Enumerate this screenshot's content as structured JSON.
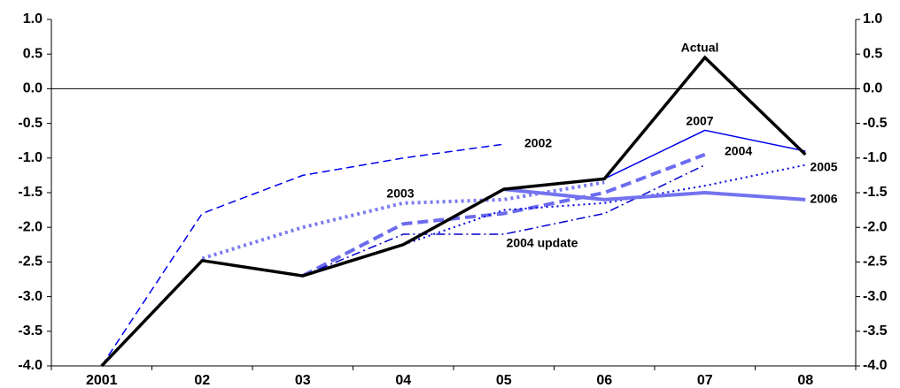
{
  "chart_data": {
    "type": "line",
    "categories": [
      "2001",
      "02",
      "03",
      "04",
      "05",
      "06",
      "07",
      "08"
    ],
    "ylim": [
      -4,
      1
    ],
    "yticks": [
      {
        "value": -4,
        "label": "-4.0"
      },
      {
        "value": -3.5,
        "label": "-3.5"
      },
      {
        "value": -3,
        "label": "-3.0"
      },
      {
        "value": -2.5,
        "label": "-2.5"
      },
      {
        "value": -2,
        "label": "-2.0"
      },
      {
        "value": -1.5,
        "label": "-1.5"
      },
      {
        "value": -1,
        "label": "-1.0"
      },
      {
        "value": -0.5,
        "label": "-0.5"
      },
      {
        "value": 0,
        "label": "0.0"
      },
      {
        "value": 0.5,
        "label": "0.5"
      },
      {
        "value": 1,
        "label": "1.0"
      }
    ],
    "y2lim": [
      -4,
      1
    ],
    "y2ticks": [
      {
        "value": -4,
        "label": "-4.0"
      },
      {
        "value": -3.5,
        "label": "-3.5"
      },
      {
        "value": -3,
        "label": "-3.0"
      },
      {
        "value": -2.5,
        "label": "-2.5"
      },
      {
        "value": -2,
        "label": "-2.0"
      },
      {
        "value": -1.5,
        "label": "-1.5"
      },
      {
        "value": -1,
        "label": "-1.0"
      },
      {
        "value": -0.5,
        "label": "-0.5"
      },
      {
        "value": 0,
        "label": "0.0"
      },
      {
        "value": 0.5,
        "label": "0.5"
      },
      {
        "value": 1,
        "label": "1.0"
      }
    ],
    "series": [
      {
        "name": "2002",
        "color": "#0000ee",
        "style": "dashed",
        "linewidth": 1.5,
        "values": [
          -4.0,
          -1.8,
          -1.25,
          -1.0,
          -0.8,
          null,
          null,
          null
        ]
      },
      {
        "name": "2003",
        "color": "#7b7bf0",
        "style": "dotted",
        "linewidth": 4,
        "values": [
          null,
          -2.45,
          -2.0,
          -1.65,
          -1.6,
          -1.35,
          null,
          null
        ]
      },
      {
        "name": "2004",
        "color": "#6b6bef",
        "style": "dashed",
        "linewidth": 4,
        "values": [
          null,
          null,
          -2.7,
          -1.95,
          -1.8,
          -1.5,
          -0.95,
          null
        ]
      },
      {
        "name": "2004 update",
        "color": "#0000cc",
        "style": "dashdot",
        "linewidth": 1.5,
        "values": [
          null,
          null,
          -2.7,
          -2.1,
          -2.1,
          -1.8,
          -1.1,
          null
        ]
      },
      {
        "name": "2005",
        "color": "#0000dd",
        "style": "dotted",
        "linewidth": 2,
        "values": [
          null,
          null,
          null,
          -2.25,
          -1.75,
          -1.65,
          -1.4,
          -1.1
        ]
      },
      {
        "name": "2006",
        "color": "#7373f0",
        "style": "solid",
        "linewidth": 4,
        "values": [
          null,
          null,
          null,
          null,
          -1.45,
          -1.6,
          -1.5,
          -1.6
        ]
      },
      {
        "name": "2007",
        "color": "#0000ee",
        "style": "solid",
        "linewidth": 1.5,
        "values": [
          null,
          null,
          null,
          null,
          null,
          -1.3,
          -0.6,
          -0.9
        ]
      },
      {
        "name": "Actual",
        "color": "#000000",
        "style": "solid",
        "linewidth": 3.5,
        "values": [
          -4.0,
          -2.48,
          -2.7,
          -2.25,
          -1.45,
          -1.3,
          0.45,
          -0.95
        ]
      }
    ]
  }
}
